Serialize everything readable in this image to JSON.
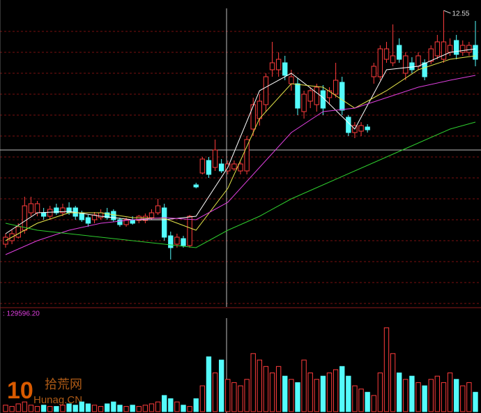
{
  "chart_data": {
    "type": "candlestick",
    "up_color": "#ff3c3c",
    "down_color": "#54fcfc",
    "ylim": [
      8.3,
      12.7
    ],
    "open": [
      9.2,
      9.25,
      9.3,
      9.4,
      9.65,
      9.65,
      9.65,
      9.6,
      9.72,
      9.65,
      9.72,
      9.72,
      9.65,
      9.58,
      9.55,
      9.58,
      9.65,
      9.67,
      9.55,
      9.48,
      9.55,
      9.54,
      9.54,
      9.58,
      9.65,
      9.72,
      9.32,
      9.2,
      9.28,
      9.18,
      10.05,
      10.22,
      10.4,
      10.3,
      10.35,
      10.25,
      10.28,
      10.25,
      10.25,
      10.85,
      11.0,
      11.2,
      11.7,
      11.7,
      11.8,
      11.5,
      11.5,
      11.1,
      11.25,
      11.2,
      11.4,
      11.3,
      11.35,
      11.52,
      11.02,
      10.8,
      10.82,
      10.88,
      11.6,
      11.6,
      11.85,
      11.8,
      12.05,
      11.65,
      11.8,
      11.75,
      11.8,
      11.82,
      11.9,
      11.85,
      11.95,
      12.12,
      11.95,
      11.95,
      12.05
    ],
    "high": [
      9.35,
      9.4,
      9.5,
      9.88,
      9.88,
      9.82,
      9.72,
      9.75,
      9.78,
      9.78,
      9.8,
      9.75,
      9.68,
      9.62,
      9.66,
      9.7,
      9.72,
      9.7,
      9.58,
      9.58,
      9.6,
      9.62,
      9.64,
      9.7,
      9.85,
      9.78,
      9.38,
      9.35,
      9.32,
      9.62,
      10.08,
      10.45,
      10.45,
      10.7,
      10.42,
      10.4,
      10.4,
      10.38,
      10.75,
      11.3,
      11.35,
      11.65,
      12.1,
      11.95,
      11.9,
      11.7,
      11.58,
      11.4,
      11.45,
      11.5,
      11.48,
      11.45,
      11.8,
      11.6,
      11.05,
      10.95,
      10.95,
      10.92,
      11.8,
      12.05,
      12.1,
      12.35,
      12.15,
      11.95,
      11.88,
      11.95,
      11.85,
      12.05,
      12.2,
      12.55,
      12.15,
      12.2,
      12.12,
      12.1,
      12.4
    ],
    "low": [
      9.15,
      9.2,
      9.28,
      9.35,
      9.6,
      9.6,
      9.55,
      9.55,
      9.62,
      9.6,
      9.62,
      9.55,
      9.52,
      9.45,
      9.5,
      9.55,
      9.55,
      9.52,
      9.45,
      9.45,
      9.48,
      9.5,
      9.5,
      9.55,
      9.62,
      9.25,
      8.98,
      9.15,
      9.15,
      9.15,
      10.0,
      10.2,
      10.15,
      10.25,
      10.22,
      10.2,
      10.25,
      10.2,
      10.2,
      10.75,
      10.9,
      11.1,
      11.6,
      11.6,
      11.55,
      11.4,
      11.05,
      11.0,
      11.15,
      11.1,
      11.05,
      11.2,
      11.3,
      11.05,
      10.75,
      10.72,
      10.75,
      10.8,
      11.5,
      11.55,
      11.8,
      11.75,
      11.8,
      11.55,
      11.65,
      11.7,
      11.55,
      11.78,
      11.85,
      11.8,
      11.9,
      11.85,
      11.9,
      11.9,
      11.75
    ],
    "close": [
      9.3,
      9.35,
      9.45,
      9.75,
      9.78,
      9.78,
      9.6,
      9.7,
      9.65,
      9.72,
      9.65,
      9.6,
      9.55,
      9.5,
      9.62,
      9.65,
      9.58,
      9.55,
      9.48,
      9.55,
      9.5,
      9.6,
      9.6,
      9.65,
      9.75,
      9.3,
      9.15,
      9.3,
      9.18,
      9.6,
      10.02,
      10.42,
      10.2,
      10.55,
      10.25,
      10.35,
      10.35,
      10.35,
      10.7,
      11.2,
      11.25,
      11.6,
      11.8,
      11.85,
      11.62,
      11.6,
      11.15,
      11.35,
      11.4,
      11.45,
      11.15,
      11.4,
      11.55,
      11.12,
      10.8,
      10.9,
      10.9,
      10.84,
      11.75,
      12.0,
      12.0,
      11.9,
      11.85,
      11.9,
      11.7,
      11.9,
      11.6,
      12.0,
      12.1,
      12.1,
      12.05,
      11.92,
      12.05,
      12.05,
      11.85
    ],
    "ma": [
      {
        "color": "#ffffff",
        "x": [
          0,
          5,
          10,
          15,
          20,
          25,
          30,
          35,
          40,
          45,
          50,
          55,
          60,
          65,
          70,
          74
        ],
        "values": [
          9.35,
          9.65,
          9.67,
          9.6,
          9.55,
          9.55,
          9.6,
          10.3,
          11.4,
          11.65,
          11.3,
          10.85,
          11.7,
          11.75,
          11.95,
          12.0
        ]
      },
      {
        "color": "#e6e64a",
        "x": [
          0,
          5,
          10,
          15,
          20,
          25,
          30,
          35,
          40,
          45,
          50,
          55,
          60,
          65,
          70,
          74
        ],
        "values": [
          9.25,
          9.5,
          9.65,
          9.65,
          9.58,
          9.57,
          9.4,
          10.0,
          11.0,
          11.5,
          11.45,
          11.15,
          11.4,
          11.7,
          11.85,
          11.9
        ]
      },
      {
        "color": "#e040e0",
        "x": [
          0,
          5,
          10,
          15,
          20,
          25,
          30,
          35,
          40,
          45,
          50,
          55,
          60,
          65,
          70,
          74
        ],
        "values": [
          9.05,
          9.25,
          9.4,
          9.5,
          9.55,
          9.58,
          9.55,
          9.8,
          10.3,
          10.8,
          11.1,
          11.15,
          11.3,
          11.45,
          11.55,
          11.62
        ]
      },
      {
        "color": "#2ecc2e",
        "x": [
          0,
          5,
          10,
          15,
          20,
          25,
          30,
          35,
          40,
          45,
          50,
          55,
          60,
          65,
          70,
          74
        ],
        "values": [
          9.5,
          9.4,
          9.35,
          9.3,
          9.25,
          9.2,
          9.15,
          9.4,
          9.6,
          9.85,
          10.05,
          10.25,
          10.45,
          10.65,
          10.85,
          10.95
        ]
      }
    ],
    "volume": [
      20000,
      16000,
      24000,
      30000,
      20000,
      16000,
      20000,
      16000,
      16000,
      20000,
      24000,
      20000,
      30000,
      24000,
      20000,
      16000,
      24000,
      30000,
      20000,
      16000,
      20000,
      16000,
      20000,
      24000,
      30000,
      50000,
      40000,
      30000,
      20000,
      16000,
      40000,
      80000,
      170000,
      120000,
      160000,
      100000,
      90000,
      80000,
      100000,
      180000,
      160000,
      140000,
      120000,
      140000,
      110000,
      100000,
      90000,
      160000,
      120000,
      100000,
      110000,
      120000,
      130000,
      140000,
      110000,
      80000,
      70000,
      60000,
      50000,
      120000,
      260000,
      180000,
      120000,
      100000,
      110000,
      90000,
      80000,
      100000,
      110000,
      90000,
      120000,
      100000,
      80000,
      90000,
      60000
    ],
    "volume_ylim": [
      0,
      290000
    ],
    "volume_label": ": 129596.20",
    "watermark": {
      "logo": "10",
      "name": "拾荒网",
      "site": "Hunag.CN"
    }
  }
}
